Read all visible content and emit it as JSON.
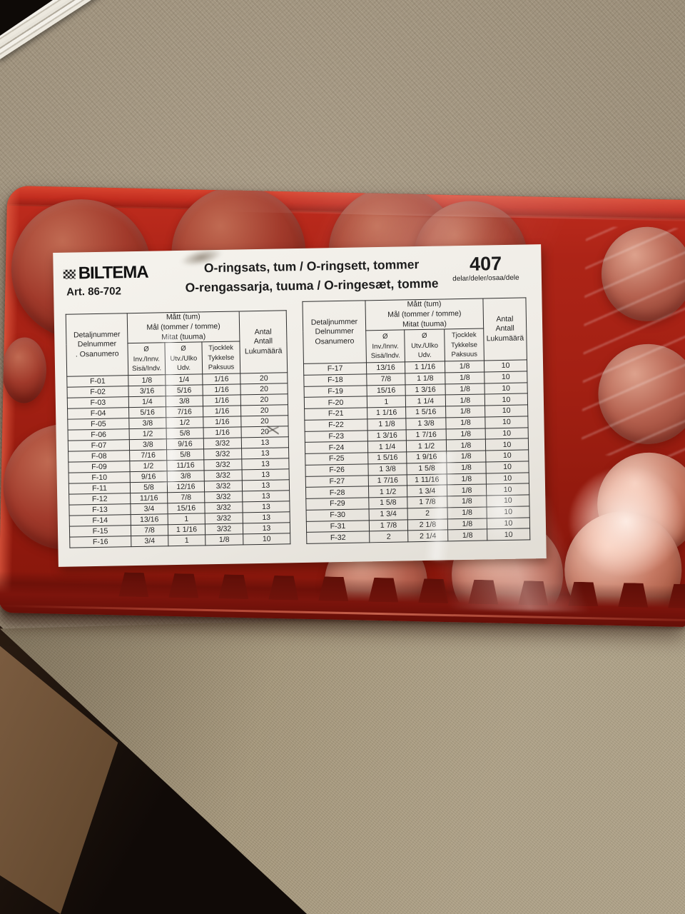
{
  "label": {
    "brand": "BILTEMA",
    "logo_icon": "checkerboard-flag-icon",
    "article_number": "Art. 86-702",
    "title_line_1": "O-ringsats, tum / O-ringsett, tommer",
    "title_line_2": "O-rengassarja, tuuma / O-ringesæt, tomme",
    "total_count": "407",
    "total_count_units": "delar/deler/osaa/dele",
    "tables": [
      {
        "part_header": "Detaljnummer\nDelnummer\n. Osanumero",
        "dims_header": "Mått (tum)\nMål (tommer / tomme)\nMitat (tuuma)",
        "qty_header": "Antal\nAntall\nLukumäärä",
        "sub_headers": [
          "Ø\nInv./Innv.\nSisä/Indv.",
          "Ø\nUtv./Ulko\nUdv.",
          "Tjocklek\nTykkelse\nPaksuus"
        ],
        "rows": [
          [
            "F-01",
            "1/8",
            "1/4",
            "1/16",
            "20"
          ],
          [
            "F-02",
            "3/16",
            "5/16",
            "1/16",
            "20"
          ],
          [
            "F-03",
            "1/4",
            "3/8",
            "1/16",
            "20"
          ],
          [
            "F-04",
            "5/16",
            "7/16",
            "1/16",
            "20"
          ],
          [
            "F-05",
            "3/8",
            "1/2",
            "1/16",
            "20"
          ],
          [
            "F-06",
            "1/2",
            "5/8",
            "1/16",
            "20"
          ],
          [
            "F-07",
            "3/8",
            "9/16",
            "3/32",
            "13"
          ],
          [
            "F-08",
            "7/16",
            "5/8",
            "3/32",
            "13"
          ],
          [
            "F-09",
            "1/2",
            "11/16",
            "3/32",
            "13"
          ],
          [
            "F-10",
            "9/16",
            "3/8",
            "3/32",
            "13"
          ],
          [
            "F-11",
            "5/8",
            "12/16",
            "3/32",
            "13"
          ],
          [
            "F-12",
            "11/16",
            "7/8",
            "3/32",
            "13"
          ],
          [
            "F-13",
            "3/4",
            "15/16",
            "3/32",
            "13"
          ],
          [
            "F-14",
            "13/16",
            "1",
            "3/32",
            "13"
          ],
          [
            "F-15",
            "7/8",
            "1 1/16",
            "3/32",
            "13"
          ],
          [
            "F-16",
            "3/4",
            "1",
            "1/8",
            "10"
          ]
        ]
      },
      {
        "part_header": "Detaljnummer\nDelnummer\nOsanumero",
        "dims_header": "Mått (tum)\nMål (tommer / tomme)\nMitat (tuuma)",
        "qty_header": "Antal\nAntall\nLukumäärä",
        "sub_headers": [
          "Ø\nInv./Innv.\nSisä/Indv.",
          "Ø\nUtv./Ulko\nUdv.",
          "Tjocklek\nTykkelse\nPaksuus"
        ],
        "rows": [
          [
            "F-17",
            "13/16",
            "1 1/16",
            "1/8",
            "10"
          ],
          [
            "F-18",
            "7/8",
            "1 1/8",
            "1/8",
            "10"
          ],
          [
            "F-19",
            "15/16",
            "1 3/16",
            "1/8",
            "10"
          ],
          [
            "F-20",
            "1",
            "1 1/4",
            "1/8",
            "10"
          ],
          [
            "F-21",
            "1 1/16",
            "1 5/16",
            "1/8",
            "10"
          ],
          [
            "F-22",
            "1 1/8",
            "1 3/8",
            "1/8",
            "10"
          ],
          [
            "F-23",
            "1 3/16",
            "1 7/16",
            "1/8",
            "10"
          ],
          [
            "F-24",
            "1 1/4",
            "1 1/2",
            "1/8",
            "10"
          ],
          [
            "F-25",
            "1 5/16",
            "1 9/16",
            "1/8",
            "10"
          ],
          [
            "F-26",
            "1 3/8",
            "1 5/8",
            "1/8",
            "10"
          ],
          [
            "F-27",
            "1 7/16",
            "1 11/16",
            "1/8",
            "10"
          ],
          [
            "F-28",
            "1 1/2",
            "1 3/4",
            "1/8",
            "10"
          ],
          [
            "F-29",
            "1 5/8",
            "1 7/8",
            "1/8",
            "10"
          ],
          [
            "F-30",
            "1 3/4",
            "2",
            "1/8",
            "10"
          ],
          [
            "F-31",
            "1 7/8",
            "2 1/8",
            "1/8",
            "10"
          ],
          [
            "F-32",
            "2",
            "2 1/4",
            "1/8",
            "10"
          ]
        ]
      }
    ]
  },
  "colors": {
    "case_red": "#a62218",
    "cap_dark_red": "#a13a2b",
    "cap_salmon": "#b4604e",
    "label_background": "#f0ede7",
    "tablecloth_beige": "#a59780",
    "text": "#1c1c1c"
  }
}
